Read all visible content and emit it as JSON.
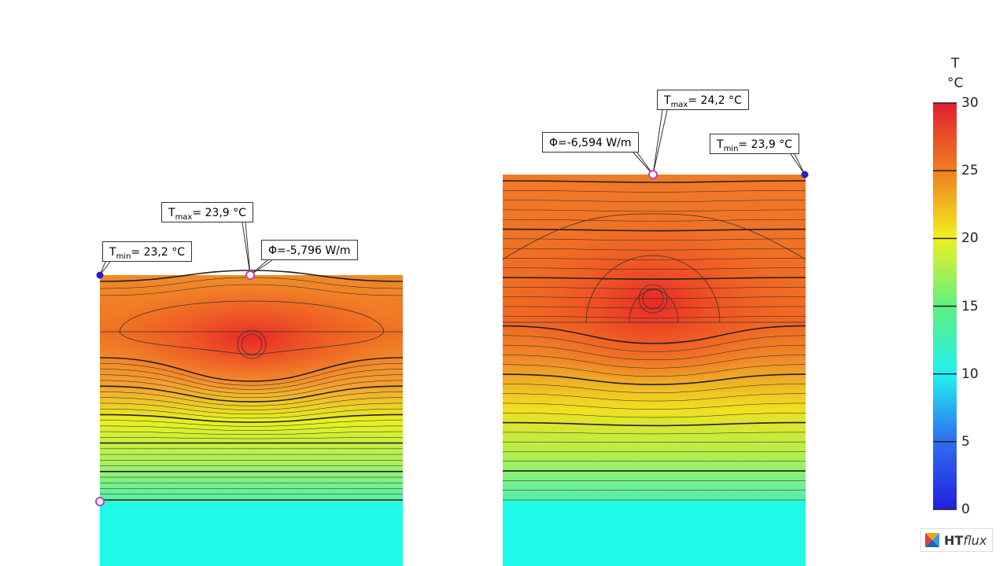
{
  "left": {
    "callouts": [
      {
        "symbol": "T",
        "subscript": "min",
        "text": "= 23,2 °C"
      },
      {
        "symbol": "T",
        "subscript": "max",
        "text": "= 23,9 °C"
      },
      {
        "text": "Φ=-5,796 W/m"
      }
    ]
  },
  "right": {
    "callouts": [
      {
        "text": "Φ=-6,594 W/m"
      },
      {
        "symbol": "T",
        "subscript": "max",
        "text": "= 24,2 °C"
      },
      {
        "symbol": "T",
        "subscript": "min",
        "text": "= 23,9 °C"
      }
    ]
  },
  "colorbar": {
    "title": "T",
    "unit": "°C",
    "min": 0,
    "max": 30,
    "ticks": [
      0,
      5,
      10,
      15,
      20,
      25,
      30
    ]
  },
  "logo": {
    "bold": "HT",
    "italic": "flux"
  }
}
